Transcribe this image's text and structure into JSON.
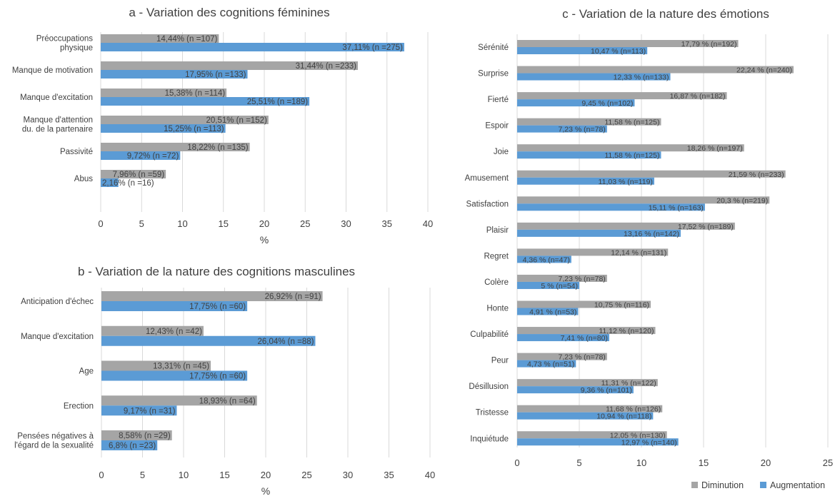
{
  "colors": {
    "diminution": "#a5a5a5",
    "augmentation": "#5b9bd5",
    "grid": "#d9d9d9",
    "text": "#404040"
  },
  "legend": {
    "items": [
      "Diminution",
      "Augmentation"
    ],
    "position": "bottom-right"
  },
  "chart_data": [
    {
      "type": "bar",
      "orientation": "horizontal",
      "title": "a - Variation des cognitions féminines",
      "xlabel": "%",
      "xlim": [
        0,
        40
      ],
      "xticks": [
        0,
        5,
        10,
        15,
        20,
        25,
        30,
        35,
        40
      ],
      "grid": true,
      "categories": [
        [
          "Préoccupations",
          "physique"
        ],
        [
          "Manque de motivation"
        ],
        [
          "Manque d'excitation"
        ],
        [
          "Manque d'attention",
          "du. de la partenaire"
        ],
        [
          "Passivité"
        ],
        [
          "Abus"
        ]
      ],
      "series": [
        {
          "name": "Diminution",
          "values": [
            14.44,
            31.44,
            15.38,
            20.51,
            18.22,
            7.96
          ],
          "labels": [
            "14,44% (n =107)",
            "31,44% (n =233)",
            "15,38% (n =114)",
            "20,51% (n =152)",
            "18,22% (n =135)",
            "7,96% (n =59)"
          ]
        },
        {
          "name": "Augmentation",
          "values": [
            37.11,
            17.95,
            25.51,
            15.25,
            9.72,
            2.16
          ],
          "labels": [
            "37,11% (n =275)",
            "17,95% (n =133)",
            "25,51% (n =189)",
            "15,25% (n =113)",
            "9,72% (n =72)",
            "2,16% (n =16)"
          ]
        }
      ]
    },
    {
      "type": "bar",
      "orientation": "horizontal",
      "title": "b - Variation de la nature des cognitions masculines",
      "xlabel": "%",
      "xlim": [
        0,
        40
      ],
      "xticks": [
        0,
        5,
        10,
        15,
        20,
        25,
        30,
        35,
        40
      ],
      "grid": true,
      "categories": [
        [
          "Anticipation d'échec"
        ],
        [
          "Manque d'excitation"
        ],
        [
          "Age"
        ],
        [
          "Erection"
        ],
        [
          "Pensées négatives à",
          "l'égard de la sexualité"
        ]
      ],
      "series": [
        {
          "name": "Diminution",
          "values": [
            26.92,
            12.43,
            13.31,
            18.93,
            8.58
          ],
          "labels": [
            "26,92% (n =91)",
            "12,43% (n =42)",
            "13,31% (n =45)",
            "18,93% (n =64)",
            "8,58% (n =29)"
          ]
        },
        {
          "name": "Augmentation",
          "values": [
            17.75,
            26.04,
            17.75,
            9.17,
            6.8
          ],
          "labels": [
            "17,75% (n =60)",
            "26,04% (n =88)",
            "17,75% (n =60)",
            "9,17% (n =31)",
            "6,8% (n =23)"
          ]
        }
      ]
    },
    {
      "type": "bar",
      "orientation": "horizontal",
      "title": "c - Variation de la nature des émotions",
      "xlabel": "",
      "xlim": [
        0,
        25
      ],
      "xticks": [
        0,
        5,
        10,
        15,
        20,
        25
      ],
      "grid": true,
      "categories": [
        [
          "Sérénité"
        ],
        [
          "Surprise"
        ],
        [
          "Fierté"
        ],
        [
          "Espoir"
        ],
        [
          "Joie"
        ],
        [
          "Amusement"
        ],
        [
          "Satisfaction"
        ],
        [
          "Plaisir"
        ],
        [
          "Regret"
        ],
        [
          "Colère"
        ],
        [
          "Honte"
        ],
        [
          "Culpabilité"
        ],
        [
          "Peur"
        ],
        [
          "Désillusion"
        ],
        [
          "Tristesse"
        ],
        [
          "Inquiétude"
        ]
      ],
      "series": [
        {
          "name": "Diminution",
          "values": [
            17.79,
            22.24,
            16.87,
            11.58,
            18.26,
            21.59,
            20.3,
            17.52,
            12.14,
            7.23,
            10.75,
            11.12,
            7.23,
            11.31,
            11.68,
            12.05
          ],
          "labels": [
            "17,79 % (n=192)",
            "22,24 % (n=240)",
            "16,87 % (n=182)",
            "11,58 % (n=125)",
            "18,26 % (n=197)",
            "21,59 % (n=233)",
            "20,3 % (n=219)",
            "17,52 % (n=189)",
            "12,14 % (n=131)",
            "7,23 % (n=78)",
            "10,75 % (n=116)",
            "11,12 % (n=120)",
            "7,23 % (n=78)",
            "11,31 % (n=122)",
            "11,68 % (n=126)",
            "12,05 % (n=130)"
          ]
        },
        {
          "name": "Augmentation",
          "values": [
            10.47,
            12.33,
            9.45,
            7.23,
            11.58,
            11.03,
            15.11,
            13.16,
            4.36,
            5,
            4.91,
            7.41,
            4.73,
            9.36,
            10.94,
            12.97
          ],
          "labels": [
            "10,47 % (n=113)",
            "12,33 % (n=133)",
            "9,45 % (n=102)",
            "7,23 % (n=78)",
            "11,58 % (n=125)",
            "11,03 % (n=119)",
            "15,11 % (n=163)",
            "13,16 % (n=142)",
            "4,36 % (n=47)",
            "5 % (n=54)",
            "4,91 % (n=53)",
            "7,41 % (n=80)",
            "4,73 % (n=51)",
            "9,36 % (n=101)",
            "10,94 % (n=118)",
            "12,97 % (n=140)"
          ]
        }
      ]
    }
  ]
}
